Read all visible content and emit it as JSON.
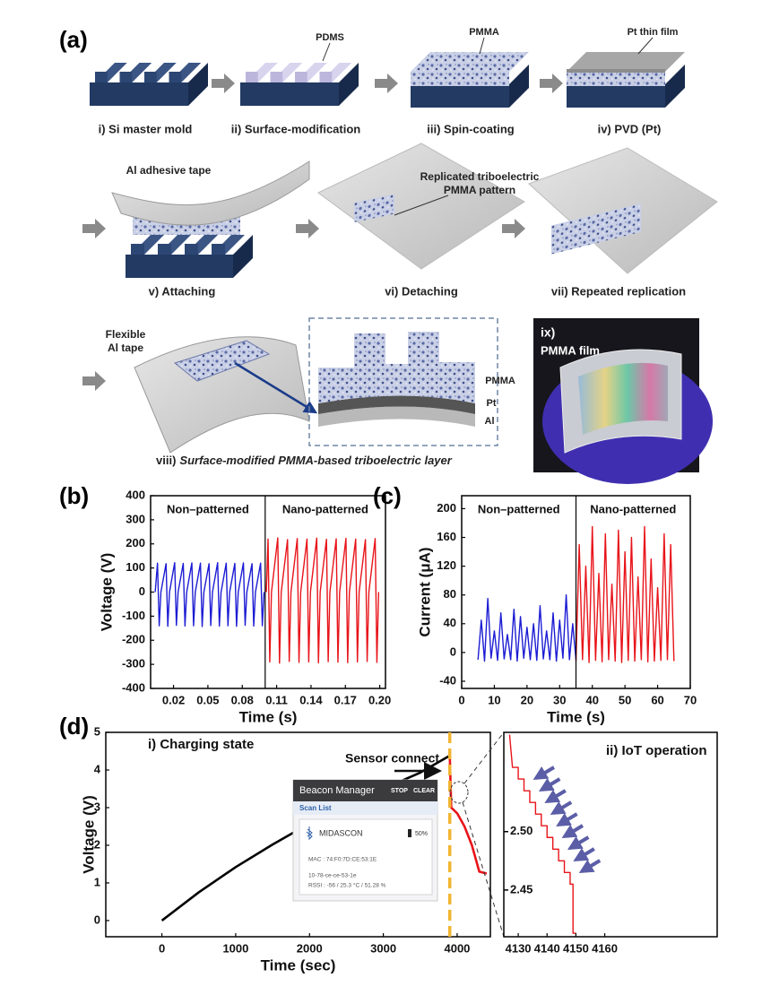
{
  "figure": {
    "panel_label": "(a)",
    "steps": [
      "i) Si master mold",
      "ii) Surface-modification",
      "iii) Spin-coating",
      "iv) PVD (Pt)",
      "v) Attaching",
      "vi) Detaching",
      "vii) Repeated replication"
    ],
    "callouts": {
      "pdms": "PDMS",
      "pmma": "PMMA",
      "pt_film": "Pt thin film",
      "al_tape": "Al adhesive tape",
      "replicated_1": "Replicated triboelectric",
      "replicated_2": "PMMA pattern",
      "flexible_1": "Flexible",
      "flexible_2": "Al tape"
    },
    "layers": [
      "PMMA",
      "Pt",
      "Al"
    ],
    "photo": {
      "label": "ix)",
      "film": "PMMA film"
    },
    "caption": {
      "numeral": "viii)",
      "text": "Surface-modified PMMA-based triboelectric layer"
    },
    "inset": {
      "app": "Beacon Manager",
      "stop": "STOP",
      "clear": "CLEAR",
      "list": "Scan List",
      "device": "MIDASCON",
      "battery": "50%",
      "mac": "MAC : 74:F0:7D:CE:53:1E",
      "id": "10-78-ce-ce-53-1e",
      "rssi": "RSSI : -56 / 25.3 °C / 51.28 %"
    }
  },
  "chart_data": [
    {
      "type": "line",
      "panel_label": "(b)",
      "xlabel": "Time (s)",
      "ylabel": "Voltage (V)",
      "xlim": [
        0,
        0.205
      ],
      "ylim": [
        -400,
        400
      ],
      "xticks": [
        0.02,
        0.05,
        0.08,
        0.11,
        0.14,
        0.17,
        {
          "value": 0.2,
          "label": "0.20"
        }
      ],
      "yticks": [
        -400,
        -300,
        -200,
        -100,
        0,
        100,
        200,
        300,
        400
      ],
      "series": [
        {
          "name": "Non–patterned",
          "color": "#1c1cd4",
          "x": [
            0.004,
            0.006,
            0.0075,
            0.009,
            0.0135,
            0.015,
            0.0165,
            0.021,
            0.0225,
            0.024,
            0.0285,
            0.03,
            0.0315,
            0.036,
            0.0375,
            0.039,
            0.0435,
            0.045,
            0.0465,
            0.051,
            0.0525,
            0.054,
            0.0585,
            0.06,
            0.0615,
            0.066,
            0.0675,
            0.069,
            0.0735,
            0.075,
            0.0765,
            0.081,
            0.0825,
            0.084,
            0.0885,
            0.09,
            0.0915,
            0.096,
            0.0975,
            0.099
          ],
          "values": [
            0,
            120,
            -140,
            0,
            118,
            -142,
            0,
            122,
            -138,
            0,
            119,
            -141,
            0,
            121,
            -140,
            0,
            120,
            -143,
            0,
            118,
            -139,
            0,
            122,
            -141,
            0,
            120,
            -140,
            0,
            119,
            -142,
            0,
            121,
            -138,
            0,
            118,
            -141,
            0,
            120,
            -140,
            0
          ]
        },
        {
          "name": "Nano-patterned",
          "color": "#e8141a",
          "x": [
            0.101,
            0.1025,
            0.104,
            0.1055,
            0.111,
            0.1125,
            0.114,
            0.1195,
            0.121,
            0.1225,
            0.128,
            0.1295,
            0.131,
            0.1365,
            0.138,
            0.1395,
            0.145,
            0.1465,
            0.148,
            0.1535,
            0.155,
            0.1565,
            0.162,
            0.1635,
            0.165,
            0.1705,
            0.172,
            0.1735,
            0.179,
            0.1805,
            0.182,
            0.1875,
            0.189,
            0.1905,
            0.196,
            0.1975,
            0.199
          ],
          "values": [
            0,
            220,
            -290,
            0,
            225,
            -295,
            0,
            218,
            -288,
            0,
            222,
            -292,
            0,
            220,
            -290,
            0,
            224,
            -294,
            0,
            219,
            -289,
            0,
            221,
            -291,
            0,
            223,
            -293,
            0,
            220,
            -290,
            0,
            218,
            -288,
            0,
            222,
            -292,
            0
          ]
        }
      ]
    },
    {
      "type": "line",
      "panel_label": "(c)",
      "xlabel": "Time (s)",
      "ylabel": "Current (μA)",
      "xlim": [
        0,
        70
      ],
      "ylim": [
        -50,
        218
      ],
      "xticks": [
        0,
        10,
        20,
        30,
        40,
        50,
        60,
        70
      ],
      "yticks": [
        -40,
        0,
        40,
        80,
        120,
        160,
        200
      ],
      "series": [
        {
          "name": "Non–patterned",
          "color": "#1c1cd4",
          "x": [
            5,
            6,
            7,
            8,
            9,
            10,
            11,
            12,
            13,
            14,
            15,
            16,
            17,
            18,
            19,
            20,
            21,
            22,
            23,
            24,
            25,
            26,
            27,
            28,
            29,
            30,
            31,
            32,
            33,
            34,
            35
          ],
          "values": [
            -10,
            45,
            -12,
            75,
            -8,
            30,
            -11,
            55,
            -9,
            25,
            -10,
            60,
            -12,
            50,
            -8,
            35,
            -10,
            40,
            -11,
            65,
            -9,
            30,
            -10,
            55,
            -12,
            45,
            -8,
            80,
            -10,
            40,
            -10
          ]
        },
        {
          "name": "Nano-patterned",
          "color": "#e8141a",
          "x": [
            35,
            36,
            37,
            38,
            39,
            40,
            41,
            42,
            43,
            44,
            45,
            46,
            47,
            48,
            49,
            50,
            51,
            52,
            53,
            54,
            55,
            56,
            57,
            58,
            59,
            60,
            61,
            62,
            63,
            64,
            65
          ],
          "values": [
            -12,
            150,
            -10,
            120,
            -14,
            175,
            -11,
            110,
            -13,
            165,
            -10,
            95,
            -12,
            170,
            -14,
            140,
            -11,
            160,
            -12,
            105,
            -10,
            175,
            -13,
            130,
            -12,
            90,
            -11,
            165,
            -10,
            150,
            -12
          ]
        }
      ]
    },
    {
      "type": "line",
      "panel_label": "(d)",
      "title": "i) Charging state",
      "annotation": "Sensor connect",
      "xlabel": "Time (sec)",
      "ylabel": "Voltage (V)",
      "xlim": [
        -760,
        4450
      ],
      "ylim": [
        -0.43,
        5
      ],
      "xticks": [
        0,
        1000,
        2000,
        3000,
        4000
      ],
      "yticks": [
        0,
        1,
        2,
        3,
        4,
        5
      ],
      "series": [
        {
          "color": "#000000",
          "x": [
            0,
            500,
            1000,
            1500,
            2000,
            2500,
            3000,
            3500,
            3900
          ],
          "values": [
            0,
            0.75,
            1.42,
            2.02,
            2.58,
            3.05,
            3.5,
            3.93,
            4.38
          ]
        },
        {
          "color": "#e8141a",
          "x": [
            3900,
            3920,
            4000,
            4100,
            4200,
            4300,
            4400
          ],
          "values": [
            4.38,
            3.0,
            2.85,
            2.5,
            2.0,
            1.3,
            1.25
          ]
        }
      ]
    },
    {
      "type": "line",
      "title": "ii) IoT operation",
      "xlim": [
        4125,
        4199
      ],
      "ylim": [
        2.41,
        2.585
      ],
      "xticks": [
        4130,
        4140,
        4150,
        4160
      ],
      "yticks": [
        {
          "value": 2.5,
          "label": "2.50"
        },
        2.45
      ],
      "series": [
        {
          "color": "#e8141a",
          "x": [
            4127,
            4128,
            4130,
            4130,
            4132,
            4132,
            4134,
            4134,
            4136,
            4136,
            4138,
            4138,
            4140,
            4140,
            4142,
            4142,
            4144,
            4144,
            4146,
            4146,
            4148,
            4148,
            4149,
            4149,
            4150
          ],
          "values": [
            2.583,
            2.555,
            2.555,
            2.545,
            2.545,
            2.535,
            2.535,
            2.525,
            2.525,
            2.515,
            2.515,
            2.505,
            2.505,
            2.495,
            2.495,
            2.485,
            2.485,
            2.475,
            2.475,
            2.465,
            2.465,
            2.455,
            2.455,
            2.413,
            2.413
          ]
        }
      ]
    }
  ]
}
